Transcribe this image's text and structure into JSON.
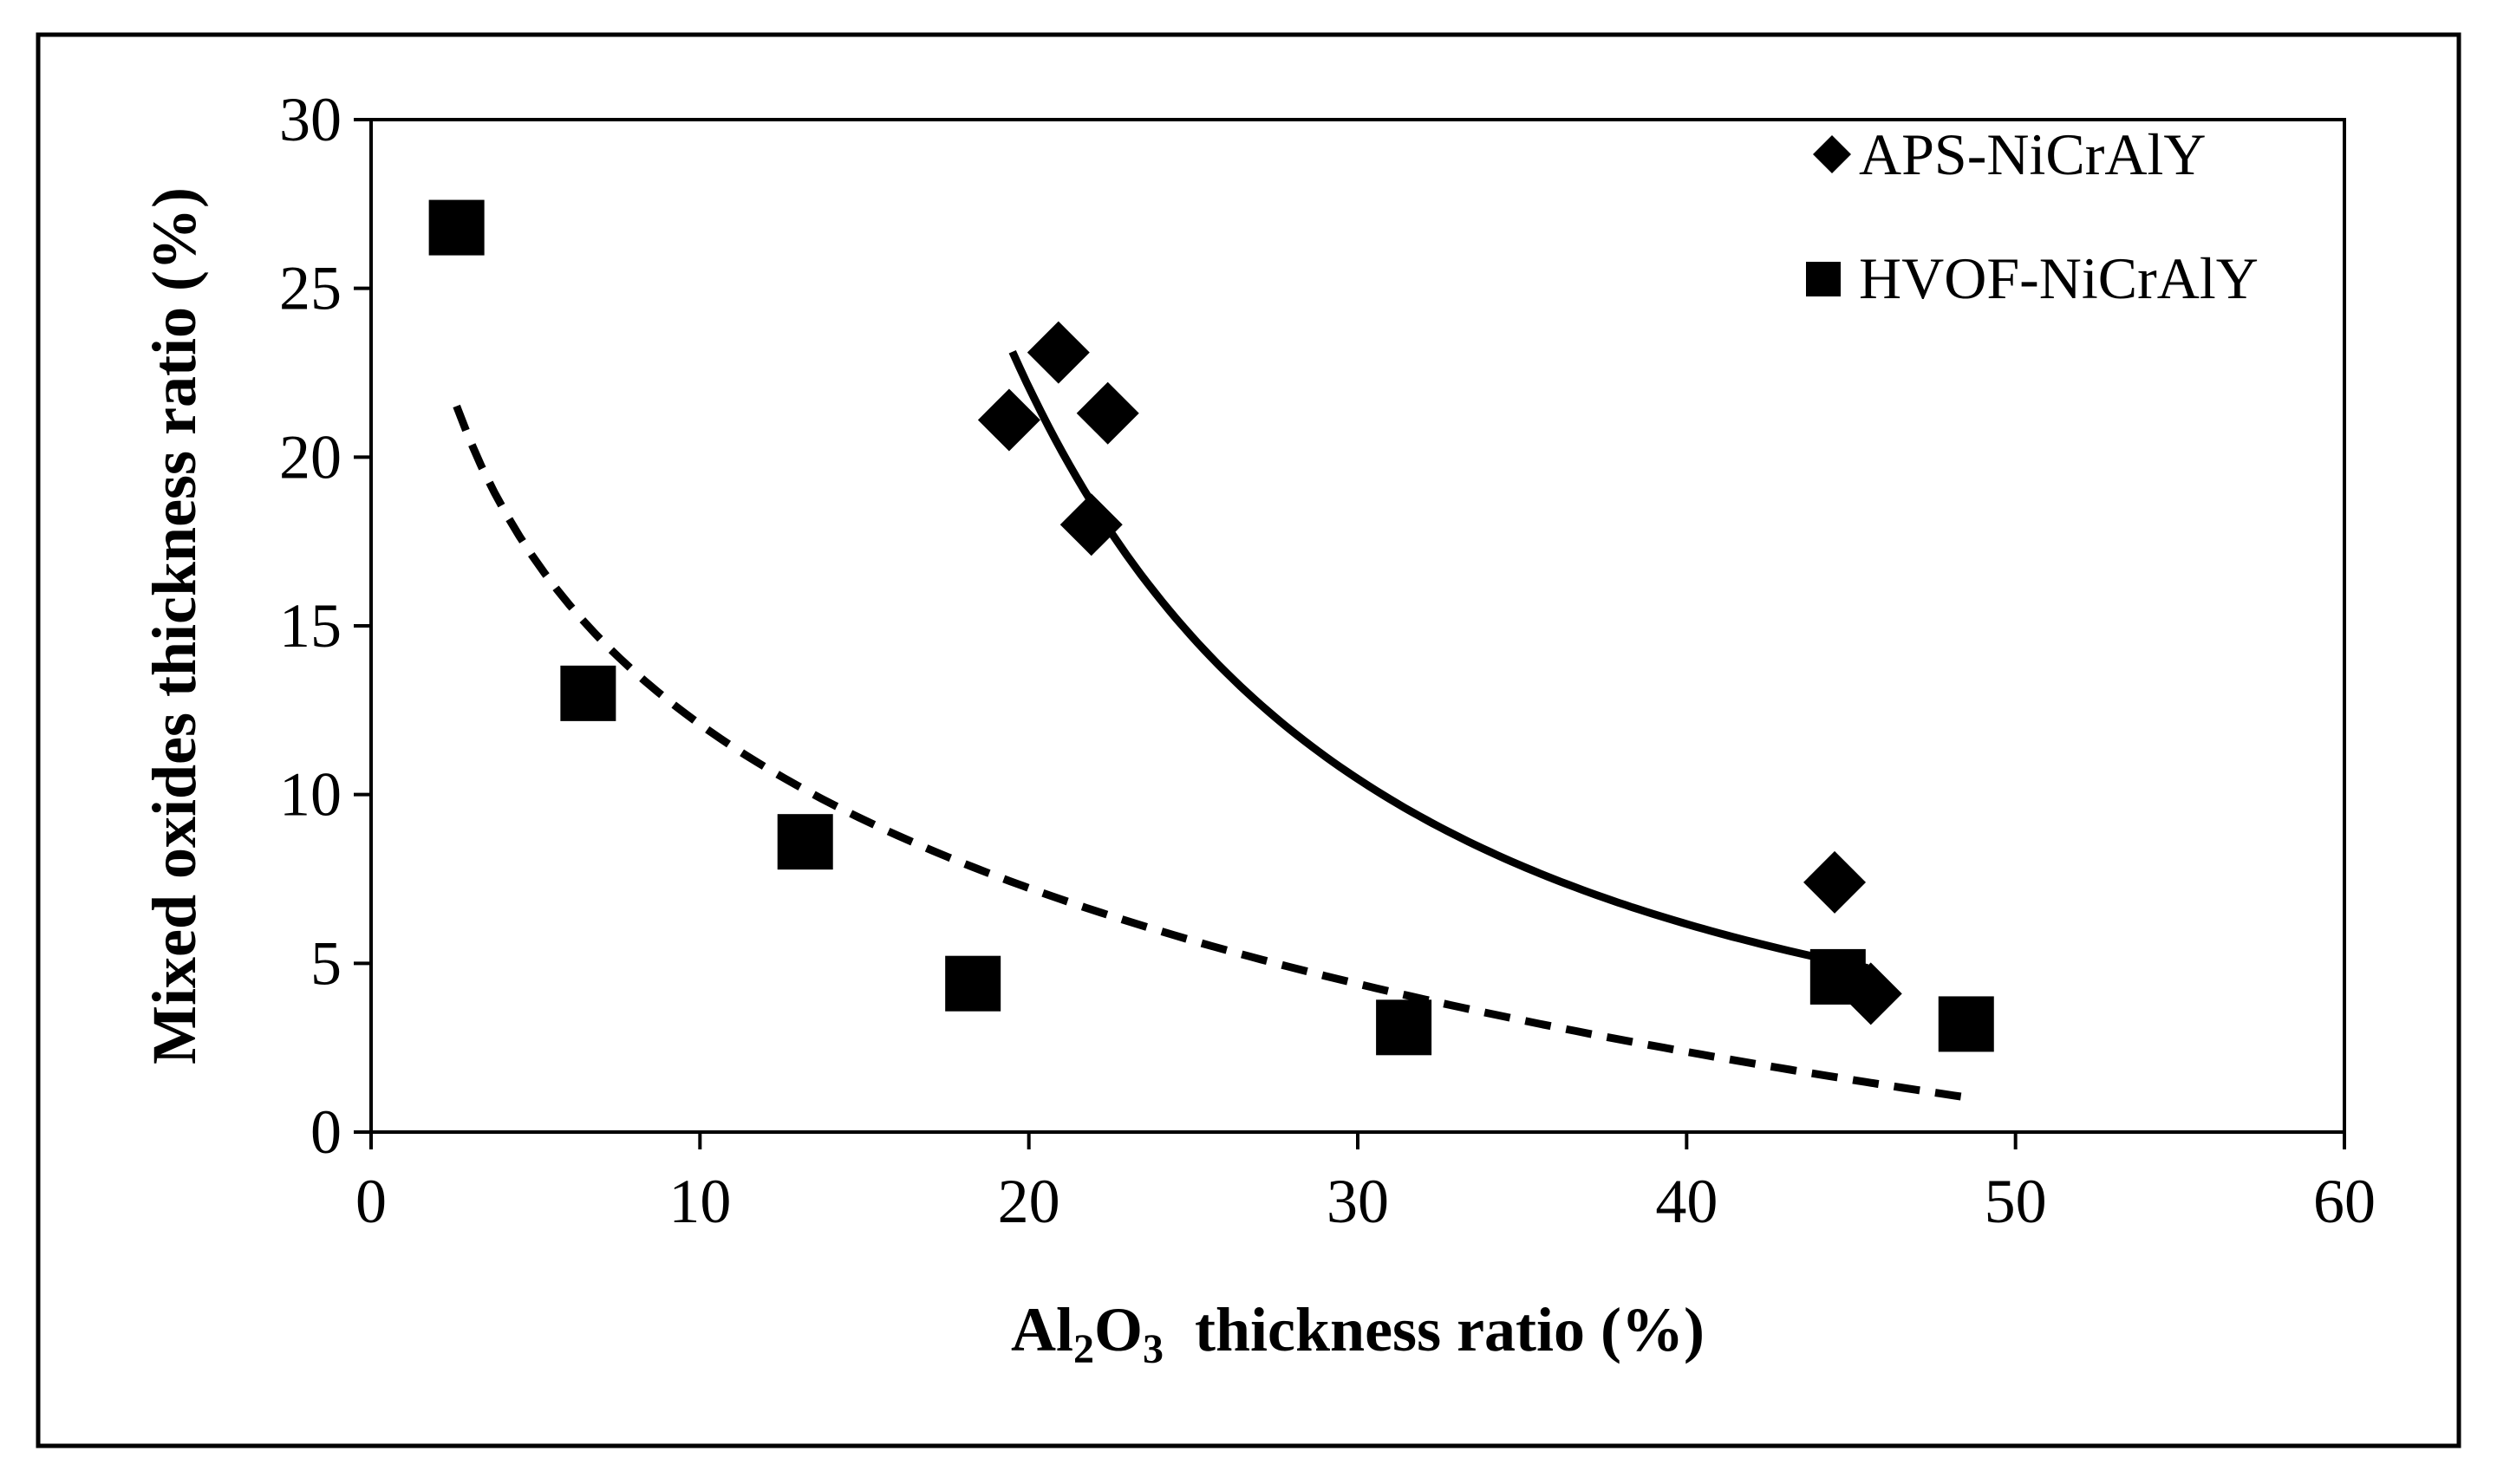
{
  "chart_data": {
    "type": "scatter",
    "title": "",
    "xlabel": {
      "base": "Al",
      "sub1": "2",
      "mid": "O",
      "sub2": "3",
      "rest": "  thickness ratio (%)"
    },
    "ylabel": "Mixed oxides thickness ratio (%)",
    "xlim": [
      0,
      60
    ],
    "ylim": [
      0,
      30
    ],
    "xticks": [
      "0",
      "10",
      "20",
      "30",
      "40",
      "50",
      "60"
    ],
    "yticks": [
      "0",
      "5",
      "10",
      "15",
      "20",
      "25",
      "30"
    ],
    "legend_position": "top-right",
    "series": [
      {
        "name": "APS-NiCrAlY",
        "marker": "diamond",
        "points": [
          [
            19.4,
            21.1
          ],
          [
            20.9,
            23.1
          ],
          [
            22.4,
            21.3
          ],
          [
            21.9,
            18.0
          ],
          [
            44.5,
            7.4
          ],
          [
            45.6,
            4.1
          ]
        ],
        "trendline": {
          "style": "solid",
          "x_range": [
            19.5,
            45.5
          ],
          "fit": "power",
          "a": 5466,
          "b": -1.84
        }
      },
      {
        "name": "HVOF-NiCrAlY",
        "marker": "square",
        "points": [
          [
            2.6,
            26.8
          ],
          [
            6.6,
            13.0
          ],
          [
            13.2,
            8.6
          ],
          [
            18.3,
            4.4
          ],
          [
            31.4,
            3.1
          ],
          [
            44.6,
            4.6
          ],
          [
            48.5,
            3.2
          ]
        ],
        "trendline": {
          "style": "dashed",
          "x_range": [
            2.6,
            48.5
          ],
          "fit": "log",
          "a": 28.2,
          "b": -7.0
        }
      }
    ]
  }
}
